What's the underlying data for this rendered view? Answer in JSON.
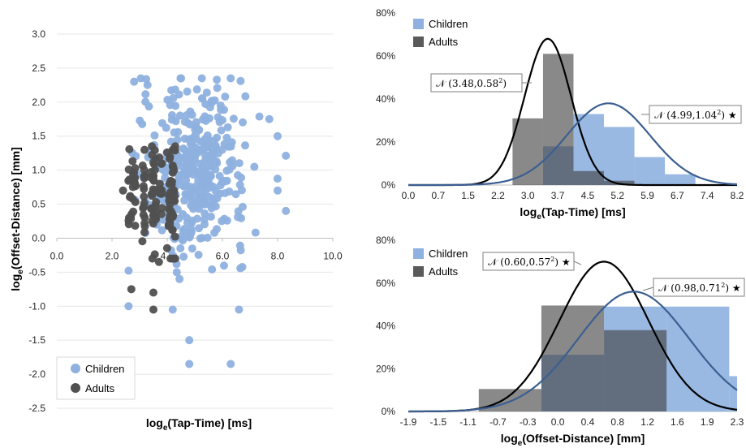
{
  "chart_data": [
    {
      "type": "scatter",
      "xlabel_main": "log",
      "xlabel_sub": "e",
      "xlabel_rest": "(Tap-Time) [ms]",
      "ylabel_main": "log",
      "ylabel_sub": "e",
      "ylabel_rest": "(Offset-Distance) [mm]",
      "xlim": [
        0,
        10
      ],
      "ylim": [
        -2.5,
        3.0
      ],
      "x_ticks": [
        "0.0",
        "2.0",
        "4.0",
        "6.0",
        "8.0",
        "10.0"
      ],
      "y_ticks": [
        "-2.5",
        "-2.0",
        "-1.5",
        "-1.0",
        "-0.5",
        "0.0",
        "0.5",
        "1.0",
        "1.5",
        "2.0",
        "2.5",
        "3.0"
      ],
      "legend": [
        "Children",
        "Adults"
      ],
      "colors": {
        "Children": "#8eb1df",
        "Adults": "#505050"
      },
      "children_x_range": [
        2.6,
        8.3
      ],
      "adults_x_range": [
        2.4,
        4.4
      ],
      "sample_points_children": [
        [
          4.8,
          -1.5
        ],
        [
          4.8,
          -1.85
        ],
        [
          6.3,
          -1.85
        ],
        [
          6.6,
          -1.05
        ],
        [
          4.2,
          -1.05
        ],
        [
          8.3,
          0.4
        ],
        [
          2.8,
          2.3
        ],
        [
          6.3,
          2.35
        ],
        [
          7.7,
          1.75
        ],
        [
          8.0,
          1.5
        ],
        [
          8.0,
          0.7
        ]
      ],
      "sample_points_adults": [
        [
          2.7,
          -0.75
        ],
        [
          3.5,
          -1.05
        ],
        [
          3.5,
          -0.8
        ],
        [
          4.2,
          1.05
        ],
        [
          4.2,
          1.3
        ],
        [
          2.4,
          0.7
        ],
        [
          3.7,
          -0.35
        ]
      ]
    },
    {
      "type": "bar",
      "xlabel_main": "log",
      "xlabel_sub": "e",
      "xlabel_rest": "(Tap-Time) [ms]",
      "x_ticks": [
        "0.0",
        "0.7",
        "1.5",
        "2.2",
        "3.0",
        "3.7",
        "4.5",
        "5.2",
        "5.9",
        "6.7",
        "7.4",
        "8.2"
      ],
      "x_range": [
        0.0,
        8.2
      ],
      "y_ticks": [
        "0%",
        "20%",
        "40%",
        "60%",
        "80%"
      ],
      "ylim": [
        0,
        80
      ],
      "legend": [
        "Children",
        "Adults"
      ],
      "bins": [
        [
          2.6,
          3.36
        ],
        [
          3.36,
          4.12
        ],
        [
          4.12,
          4.88
        ],
        [
          4.88,
          5.64
        ],
        [
          5.64,
          6.4
        ],
        [
          6.4,
          7.16
        ]
      ],
      "children": [
        0,
        18,
        33,
        27,
        13,
        5
      ],
      "adults": [
        31,
        61,
        6.5,
        2,
        0,
        0
      ],
      "fits": [
        {
          "label_pre": "𝒩 (",
          "mean": 3.48,
          "sd": 0.58,
          "label_txt": "3.48,0.58",
          "star": "",
          "color": "#000000",
          "peak": 68
        },
        {
          "label_pre": "𝒩 (",
          "mean": 4.99,
          "sd": 1.04,
          "label_txt": "4.99,1.04",
          "star": "★",
          "color": "#3b5f91",
          "peak": 38
        }
      ]
    },
    {
      "type": "bar",
      "xlabel_main": "log",
      "xlabel_sub": "e",
      "xlabel_rest": "(Offset-Distance) [mm]",
      "x_ticks": [
        "-1.9",
        "-1.5",
        "-1.1",
        "-0.7",
        "-0.3",
        "0.0",
        "0.4",
        "0.8",
        "1.2",
        "1.6",
        "1.9",
        "2.3"
      ],
      "x_range": [
        -1.9,
        2.3
      ],
      "y_ticks": [
        "0%",
        "20%",
        "40%",
        "60%",
        "80%"
      ],
      "ylim": [
        0,
        80
      ],
      "legend": [
        "Children",
        "Adults"
      ],
      "bins": [
        [
          -1.0,
          -0.2
        ],
        [
          -0.2,
          0.6
        ],
        [
          0.6,
          1.4
        ],
        [
          1.4,
          2.2
        ],
        [
          2.2,
          2.3
        ]
      ],
      "children": [
        0,
        26.5,
        49,
        49,
        16.5
      ],
      "adults": [
        10.5,
        49.5,
        38,
        0,
        0
      ],
      "fits": [
        {
          "label_pre": "𝒩 (",
          "mean": 0.6,
          "sd": 0.57,
          "label_txt": "0.60,0.57",
          "star": "★",
          "color": "#000000",
          "peak": 70
        },
        {
          "label_pre": "𝒩 (",
          "mean": 0.98,
          "sd": 0.71,
          "label_txt": "0.98,0.71",
          "star": "★",
          "color": "#3b5f91",
          "peak": 56
        }
      ]
    }
  ]
}
